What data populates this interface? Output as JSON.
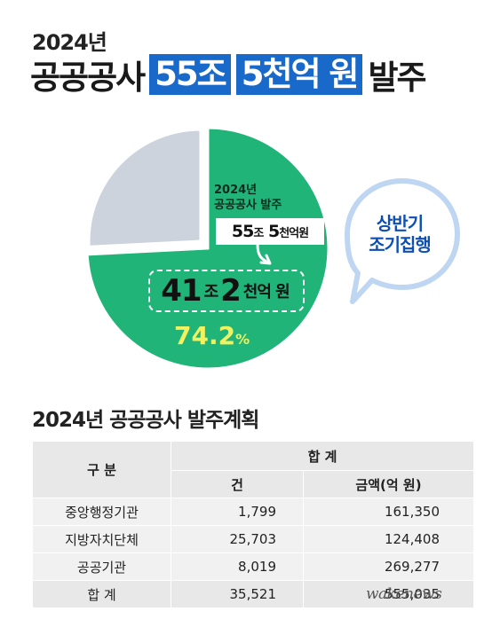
{
  "header": {
    "year": "2024년",
    "title_prefix": "공공공사",
    "title_highlight_1": "55조",
    "title_highlight_2": "5천억 원",
    "title_suffix": "발주"
  },
  "pie": {
    "year_label": "2024년",
    "label": "공공공사 발주",
    "total_num1": "55",
    "total_unit1": "조",
    "total_num2": "5",
    "total_unit2": "천억원",
    "first_half_num1": "41",
    "first_half_unit1": "조",
    "first_half_num2": "2",
    "first_half_unit2": "천억 원",
    "percent_value": "74.2",
    "percent_unit": "%"
  },
  "bubble": {
    "line1": "상반기",
    "line2": "조기집행"
  },
  "chart_data": [
    {
      "type": "pie",
      "slices": [
        {
          "label": "상반기",
          "value": 74.2
        },
        {
          "label": "",
          "value": 25.8
        }
      ],
      "colors": [
        "#21b479",
        "#ccd3dc"
      ]
    },
    {
      "type": "table",
      "title": "2024년 공공공사 발주계획",
      "columns": [
        "구 분",
        "합 계",
        "건",
        "금액(억 원)"
      ],
      "rows": [
        {
          "category": "중앙행정기관",
          "count": "1,799",
          "amount": "161,350"
        },
        {
          "category": "지방자치단체",
          "count": "25,703",
          "amount": "124,408"
        },
        {
          "category": "공공기관",
          "count": "8,019",
          "amount": "269,277"
        },
        {
          "category": "합 계",
          "count": "35,521",
          "amount": "555,035"
        }
      ]
    }
  ],
  "table": {
    "title": "2024년 공공공사 발주계획",
    "head_category": "구 분",
    "head_total": "합 계",
    "head_count": "건",
    "head_amount": "금액(억 원)",
    "rows": [
      {
        "category": "중앙행정기관",
        "count": "1,799",
        "amount": "161,350"
      },
      {
        "category": "지방자치단체",
        "count": "25,703",
        "amount": "124,408"
      },
      {
        "category": "공공기관",
        "count": "8,019",
        "amount": "269,277"
      },
      {
        "category": "합 계",
        "count": "35,521",
        "amount": "555,035"
      }
    ]
  },
  "watermark": "wakenews",
  "colors": {
    "highlight": "#1869c9",
    "pie_main": "#21b479",
    "pie_rest": "#ccd3dc",
    "percent": "#f2f25e",
    "bubble_text": "#0d4fb4",
    "bubble_border": "#bfd6f3"
  }
}
